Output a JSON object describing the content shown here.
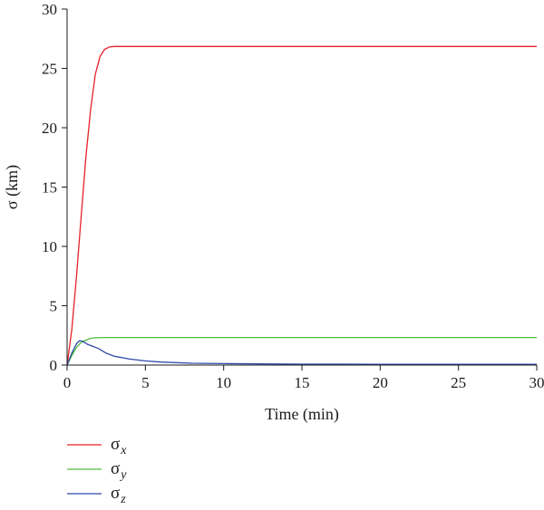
{
  "chart_data": {
    "type": "line",
    "title": "",
    "xlabel": "Time (min)",
    "ylabel": "σ (km)",
    "xlim": [
      0,
      30
    ],
    "ylim": [
      0,
      30
    ],
    "xticks": [
      0,
      5,
      10,
      15,
      20,
      25,
      30
    ],
    "yticks": [
      0,
      5,
      10,
      15,
      20,
      25,
      30
    ],
    "grid": false,
    "legend": "bottom-left, below plot",
    "series": [
      {
        "name": "σx",
        "name_base": "σ",
        "name_sub": "x",
        "color": "#e8202a",
        "x": [
          0,
          0.3,
          0.6,
          0.9,
          1.2,
          1.5,
          1.8,
          2.1,
          2.4,
          2.7,
          3.0,
          3.5,
          5,
          10,
          15,
          20,
          25,
          30
        ],
        "y": [
          0,
          3.0,
          7.5,
          12.5,
          17.5,
          21.5,
          24.5,
          26.0,
          26.6,
          26.8,
          26.85,
          26.85,
          26.85,
          26.85,
          26.85,
          26.85,
          26.85,
          26.85
        ]
      },
      {
        "name": "σy",
        "name_base": "σ",
        "name_sub": "y",
        "color": "#4dbd3a",
        "x": [
          0,
          0.3,
          0.6,
          0.9,
          1.2,
          1.5,
          1.8,
          2.2,
          3,
          5,
          10,
          15,
          20,
          25,
          30
        ],
        "y": [
          0,
          0.8,
          1.5,
          1.9,
          2.1,
          2.25,
          2.3,
          2.32,
          2.32,
          2.32,
          2.32,
          2.32,
          2.32,
          2.32,
          2.32
        ]
      },
      {
        "name": "σz",
        "name_base": "σ",
        "name_sub": "z",
        "color": "#2e4aa8",
        "x": [
          0,
          0.3,
          0.6,
          0.8,
          1.0,
          1.3,
          1.6,
          2.0,
          2.5,
          3.0,
          4.0,
          5.0,
          6.0,
          8.0,
          10,
          15,
          20,
          25,
          30
        ],
        "y": [
          0,
          1.0,
          1.8,
          2.05,
          2.0,
          1.75,
          1.6,
          1.4,
          1.0,
          0.75,
          0.5,
          0.35,
          0.25,
          0.15,
          0.12,
          0.08,
          0.07,
          0.07,
          0.07
        ]
      }
    ]
  }
}
